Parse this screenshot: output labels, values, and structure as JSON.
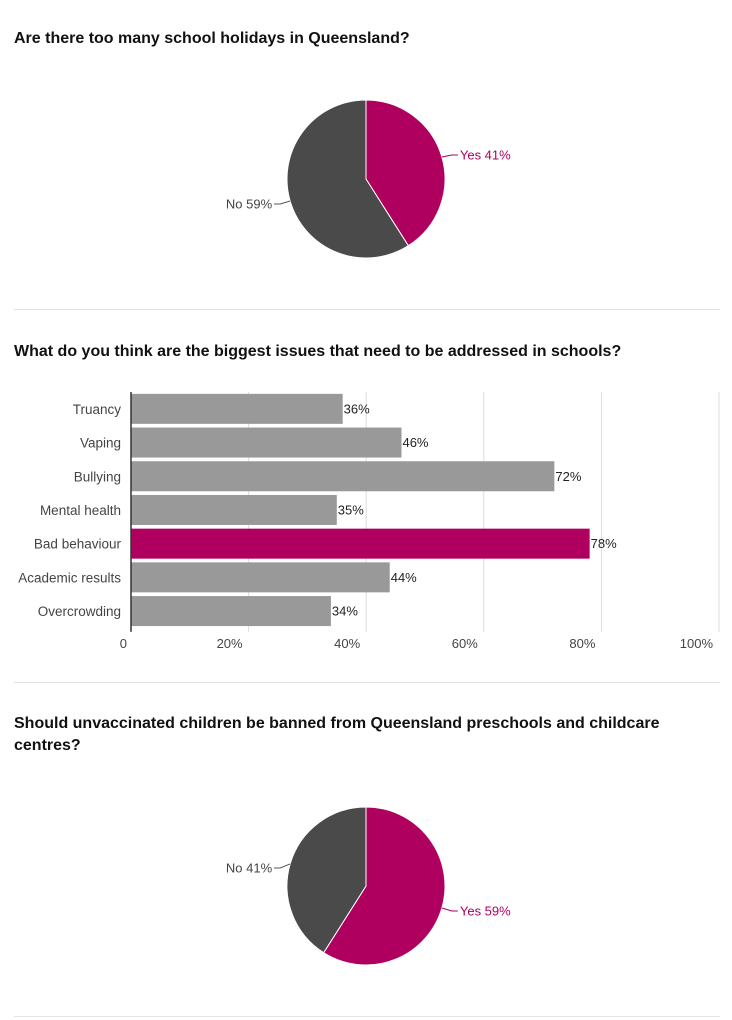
{
  "questions": [
    {
      "title": "Are there too many school holidays in Queensland?"
    },
    {
      "title": "What do you think are the biggest issues that need to be addressed in schools?"
    },
    {
      "title": "Should unvaccinated children be banned from Queensland preschools and childcare centres?"
    }
  ],
  "colors": {
    "accent": "#b0005f",
    "dark": "#4a4a4a",
    "bar": "#999999",
    "grid": "#dddddd",
    "axis": "#333333"
  },
  "chart_data": [
    {
      "type": "pie",
      "title": "Are there too many school holidays in Queensland?",
      "slices": [
        {
          "label": "Yes",
          "value": 41,
          "text": "Yes 41%",
          "color": "#b0005f"
        },
        {
          "label": "No",
          "value": 59,
          "text": "No 59%",
          "color": "#4a4a4a"
        }
      ]
    },
    {
      "type": "bar",
      "orientation": "horizontal",
      "title": "What do you think are the biggest issues that need to be addressed in schools?",
      "categories": [
        "Truancy",
        "Vaping",
        "Bullying",
        "Mental health",
        "Bad behaviour",
        "Academic results",
        "Overcrowding"
      ],
      "values": [
        36,
        46,
        72,
        35,
        78,
        44,
        34
      ],
      "value_labels": [
        "36%",
        "46%",
        "72%",
        "35%",
        "78%",
        "44%",
        "34%"
      ],
      "highlight": "Bad behaviour",
      "xlim": [
        0,
        100
      ],
      "xticks": [
        "0",
        "20%",
        "40%",
        "60%",
        "80%",
        "100%"
      ],
      "grid": true
    },
    {
      "type": "pie",
      "title": "Should unvaccinated children be banned from Queensland preschools and childcare centres?",
      "slices": [
        {
          "label": "Yes",
          "value": 59,
          "text": "Yes 59%",
          "color": "#b0005f"
        },
        {
          "label": "No",
          "value": 41,
          "text": "No 41%",
          "color": "#4a4a4a"
        }
      ]
    }
  ]
}
